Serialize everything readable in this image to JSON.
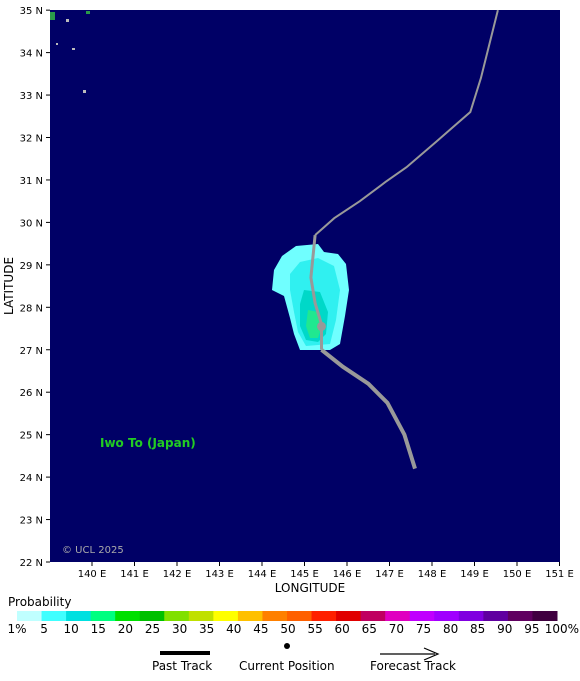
{
  "map": {
    "lat_min": 22,
    "lat_max": 35,
    "lon_min": 139,
    "lon_max": 151,
    "lat_ticks": [
      "22 N",
      "23 N",
      "24 N",
      "25 N",
      "26 N",
      "27 N",
      "28 N",
      "29 N",
      "30 N",
      "31 N",
      "32 N",
      "33 N",
      "34 N",
      "35 N"
    ],
    "lon_ticks": [
      "140 E",
      "141 E",
      "142 E",
      "143 E",
      "144 E",
      "145 E",
      "146 E",
      "147 E",
      "148 E",
      "149 E",
      "150 E",
      "151 E"
    ],
    "ylabel": "LATITUDE",
    "xlabel": "LONGITUDE",
    "place_label": "Iwo To (Japan)",
    "copyright": "© UCL 2025",
    "ocean_color": "#000066",
    "past_track": [
      [
        145.4,
        27.0
      ],
      [
        145.4,
        27.6
      ],
      [
        145.25,
        28.1
      ],
      [
        145.15,
        28.7
      ],
      [
        145.25,
        29.7
      ]
    ],
    "forecast_track": [
      [
        145.25,
        29.7
      ],
      [
        145.7,
        30.1
      ],
      [
        146.3,
        30.5
      ],
      [
        146.9,
        30.95
      ],
      [
        147.4,
        31.3
      ],
      [
        148.1,
        31.9
      ],
      [
        148.9,
        32.6
      ],
      [
        149.15,
        33.4
      ],
      [
        149.35,
        34.2
      ],
      [
        149.55,
        35.0
      ]
    ],
    "lower_track": [
      [
        145.4,
        27.0
      ],
      [
        145.9,
        26.6
      ],
      [
        146.5,
        26.2
      ],
      [
        146.95,
        25.75
      ],
      [
        147.35,
        25.0
      ],
      [
        147.6,
        24.2
      ]
    ],
    "current_position": [
      145.4,
      27.55
    ]
  },
  "legend": {
    "title": "Probability",
    "colors": [
      "#c0ffff",
      "#40ffff",
      "#00e0e0",
      "#00ff80",
      "#00e000",
      "#00c000",
      "#80e000",
      "#c0e000",
      "#ffff00",
      "#ffc000",
      "#ff8000",
      "#ff6000",
      "#ff2000",
      "#e00000",
      "#c00060",
      "#e000c0",
      "#c000ff",
      "#a000ff",
      "#8000e0",
      "#6000a0",
      "#600060",
      "#400040"
    ],
    "labels": [
      "1%",
      "5",
      "10",
      "15",
      "20",
      "25",
      "30",
      "35",
      "40",
      "45",
      "50",
      "55",
      "60",
      "65",
      "70",
      "75",
      "80",
      "85",
      "90",
      "95",
      "100%"
    ],
    "past_track_label": "Past Track",
    "current_position_label": "Current Position",
    "forecast_track_label": "Forecast Track"
  }
}
